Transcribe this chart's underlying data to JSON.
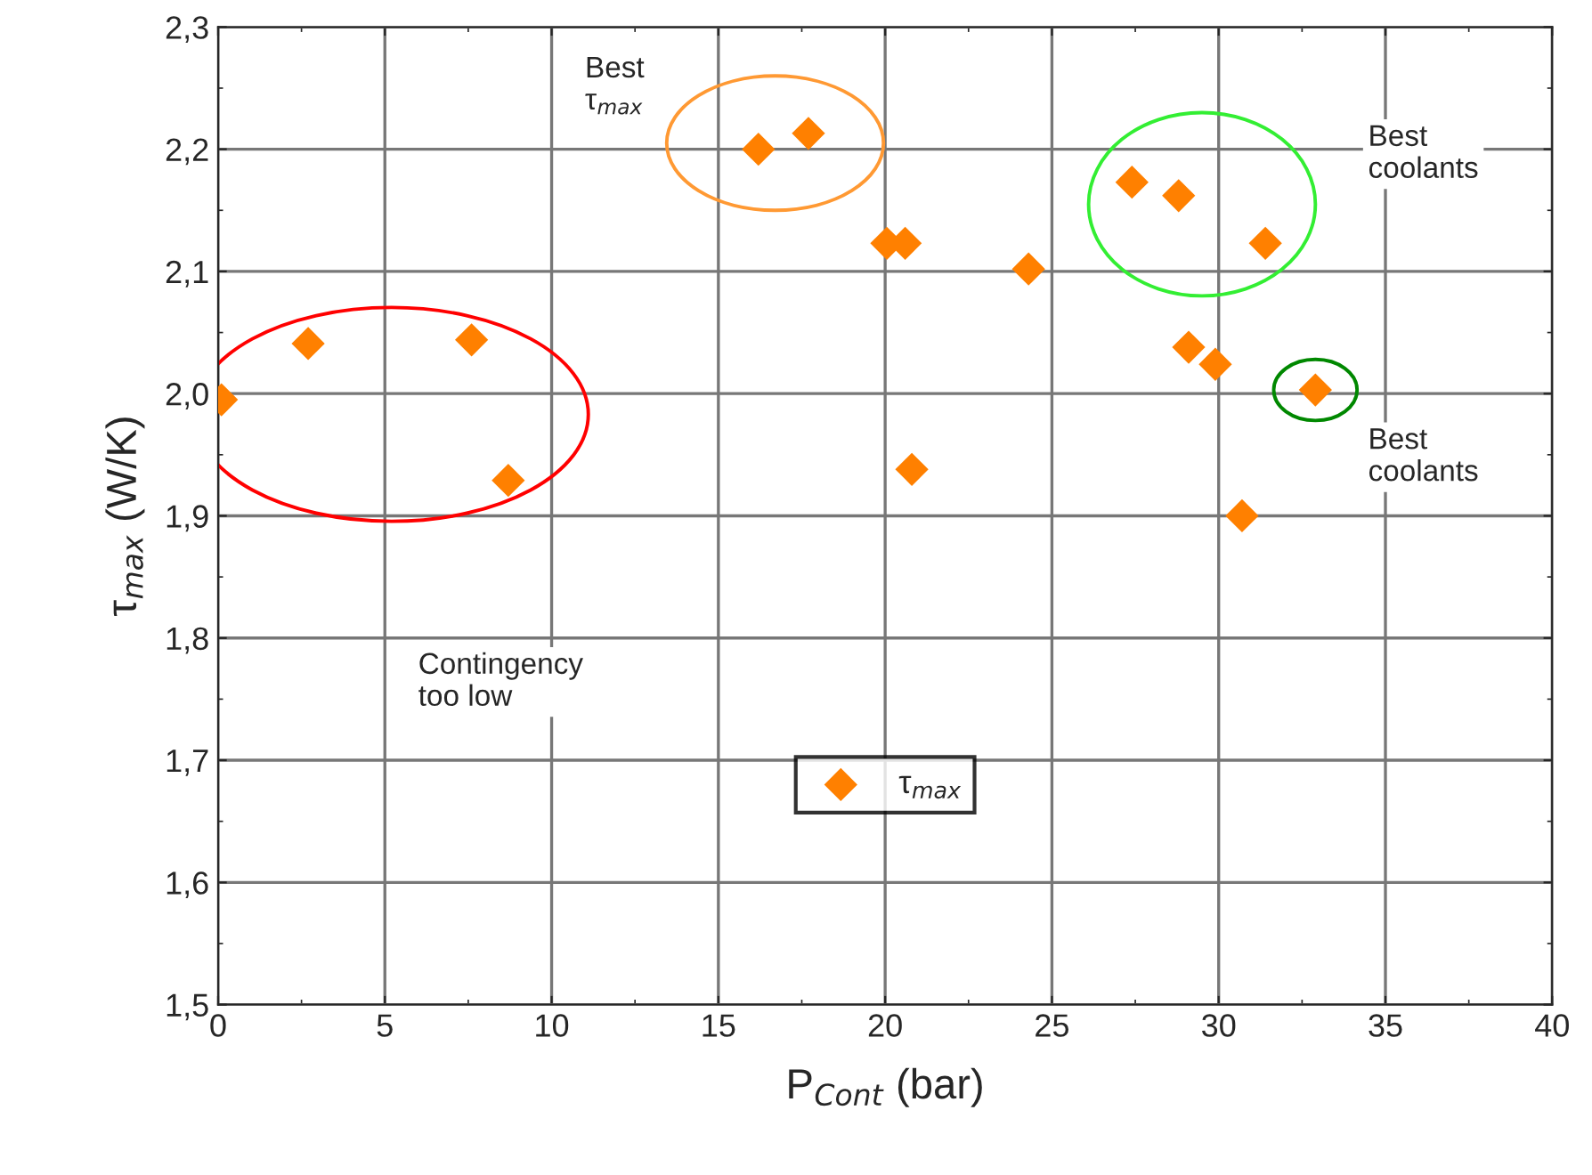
{
  "chart_data": {
    "type": "scatter",
    "xlabel": "P$_{Cont}$ (bar)",
    "ylabel": "τ$_{max}$ (W/K)",
    "x": [
      0.1,
      2.7,
      7.6,
      8.7,
      16.2,
      17.7,
      20.05,
      20.6,
      20.8,
      24.3,
      27.4,
      28.8,
      29.1,
      29.9,
      31.4,
      30.7,
      32.9
    ],
    "series": [
      {
        "name": "τ$_{max}$",
        "color": "#ff8000",
        "values": [
          1.995,
          2.041,
          2.044,
          1.929,
          2.2,
          2.213,
          2.123,
          2.123,
          1.938,
          2.102,
          2.173,
          2.162,
          2.038,
          2.024,
          2.123,
          1.9,
          2.003
        ]
      }
    ],
    "xlim": [
      0,
      40
    ],
    "xticks": [
      0,
      5,
      10,
      15,
      20,
      25,
      30,
      35,
      40
    ],
    "ylim": [
      1.5,
      2.3
    ],
    "yticks": [
      {
        "value": 1.5,
        "label": "1,5"
      },
      {
        "value": 1.6,
        "label": "1,6"
      },
      {
        "value": 1.7,
        "label": "1,7"
      },
      {
        "value": 1.8,
        "label": "1,8"
      },
      {
        "value": 1.9,
        "label": "1,9"
      },
      {
        "value": 2.0,
        "label": "2,0"
      },
      {
        "value": 2.1,
        "label": "2,1"
      },
      {
        "value": 2.2,
        "label": "2,2"
      },
      {
        "value": 2.3,
        "label": "2,3"
      }
    ],
    "annotations": [
      "Best\nτ$_{max}$",
      "Best\ncoolants",
      "Best\ncoolants",
      "Contingency\ntoo low"
    ],
    "grid": true,
    "legend": "bottom",
    "marker": "diamond"
  }
}
